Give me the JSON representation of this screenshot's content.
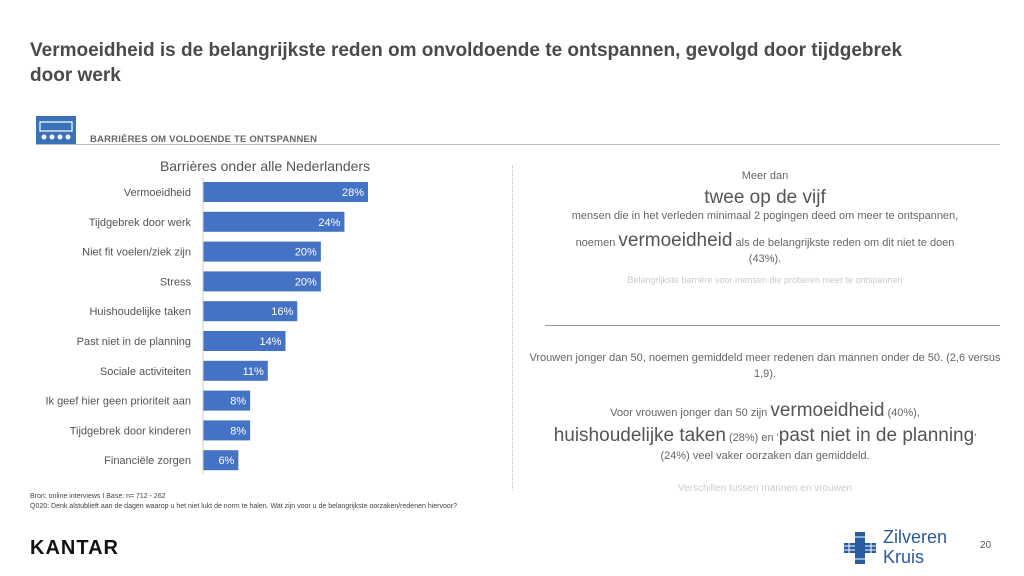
{
  "title": "Vermoeidheid is de belangrijkste reden om onvoldoende te ontspannen, gevolgd door tijdgebrek door werk",
  "section": {
    "label": "BARRIÈRES OM VOLDOENDE TE ONTSPANNEN",
    "icon": "people-audience-icon"
  },
  "chart_data": {
    "type": "bar",
    "orientation": "horizontal",
    "title": "Barrières onder alle Nederlanders",
    "categories": [
      "Vermoeidheid",
      "Tijdgebrek door werk",
      "Niet fit voelen/ziek zijn",
      "Stress",
      "Huishoudelijke taken",
      "Past niet in de planning",
      "Sociale activiteiten",
      "Ik geef hier geen prioriteit aan",
      "Tijdgebrek door kinderen",
      "Financiële zorgen"
    ],
    "values": [
      28,
      24,
      20,
      20,
      16,
      14,
      11,
      8,
      8,
      6
    ],
    "value_labels": [
      "28%",
      "24%",
      "20%",
      "20%",
      "16%",
      "14%",
      "11%",
      "8%",
      "8%",
      "6%"
    ],
    "bar_color": "#4472c4",
    "label_color": "#ffffff",
    "xlim": [
      0,
      28
    ]
  },
  "right_panel": {
    "line1": "Meer dan",
    "line2": "twee op de vijf",
    "line3": "mensen die in het verleden minimaal 2 pogingen deed om meer te ontspannen,",
    "line4_pre": "noemen ",
    "line4_big": "vermoeidheid",
    "line4_post": " als de belangrijkste reden om dit niet te doen",
    "line5": "(43%).",
    "caption1": "Belangrijkste barrière voor mensen die proberen meer te ontspannen",
    "para2": "Vrouwen jonger dan 50, noemen gemiddeld meer redenen dan mannen onder de 50. (2,6 versus 1,9).",
    "line8_pre": "Voor vrouwen jonger dan 50 zijn ",
    "line8_big": "vermoeidheid",
    "line8_post": " (40%),",
    "line9_big1": "huishoudelijke taken",
    "line9_mid": " (28%) en '",
    "line9_big2": "past niet in de planning",
    "line9_end": "'",
    "line10": "(24%) veel vaker oorzaken dan gemiddeld.",
    "caption2": "Verschillen tussen mannen en vrouwen"
  },
  "source": {
    "line1": "Bron: online interviews I Base: n= 712 - 262",
    "line2": "Q020: Denk alstublieft aan de dagen waarop u het niet lukt de norm te halen. Wat zijn voor u de belangrijkste oorzaken/redenen hiervoor?"
  },
  "brand": "KANTAR",
  "partner": {
    "line1": "Zilveren",
    "line2": "Kruis",
    "icon": "cross-icon",
    "color": "#2a5aa0"
  },
  "page_number": "20"
}
